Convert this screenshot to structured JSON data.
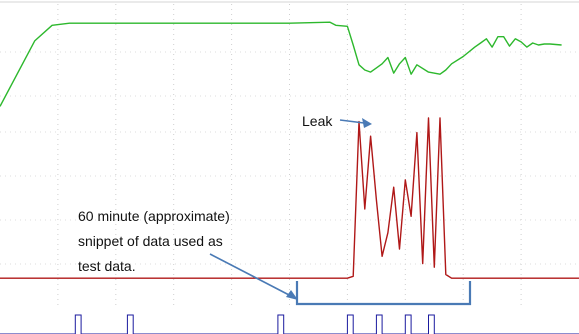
{
  "chart_data": {
    "type": "line",
    "title": "",
    "xlabel": "",
    "ylabel": "",
    "grid": true,
    "legend": "none",
    "series": [
      {
        "key": "green",
        "color": "#2db82d",
        "points": [
          [
            0,
            0.15
          ],
          [
            6,
            0.78
          ],
          [
            9,
            0.93
          ],
          [
            12,
            0.95
          ],
          [
            20,
            0.95
          ],
          [
            30,
            0.95
          ],
          [
            40,
            0.95
          ],
          [
            50,
            0.95
          ],
          [
            57,
            0.96
          ],
          [
            58,
            0.93
          ],
          [
            60,
            0.92
          ],
          [
            61,
            0.74
          ],
          [
            62,
            0.55
          ],
          [
            63,
            0.5
          ],
          [
            64,
            0.48
          ],
          [
            65,
            0.52
          ],
          [
            66,
            0.56
          ],
          [
            67,
            0.62
          ],
          [
            68,
            0.47
          ],
          [
            69,
            0.56
          ],
          [
            70,
            0.62
          ],
          [
            71,
            0.46
          ],
          [
            72,
            0.55
          ],
          [
            74,
            0.48
          ],
          [
            76,
            0.46
          ],
          [
            77,
            0.5
          ],
          [
            78,
            0.56
          ],
          [
            80,
            0.63
          ],
          [
            82,
            0.72
          ],
          [
            83,
            0.76
          ],
          [
            84,
            0.8
          ],
          [
            85,
            0.72
          ],
          [
            86,
            0.82
          ],
          [
            87,
            0.82
          ],
          [
            88,
            0.73
          ],
          [
            89,
            0.8
          ],
          [
            90,
            0.77
          ],
          [
            91,
            0.72
          ],
          [
            92,
            0.76
          ],
          [
            93,
            0.74
          ],
          [
            94,
            0.75
          ],
          [
            95,
            0.75
          ],
          [
            97,
            0.74
          ]
        ]
      },
      {
        "key": "red",
        "color": "#b01818",
        "points": [
          [
            0,
            0.12
          ],
          [
            48,
            0.12
          ],
          [
            60,
            0.12
          ],
          [
            61,
            0.13
          ],
          [
            62,
            0.98
          ],
          [
            63,
            0.5
          ],
          [
            64,
            0.9
          ],
          [
            65,
            0.55
          ],
          [
            66,
            0.24
          ],
          [
            67,
            0.37
          ],
          [
            68,
            0.62
          ],
          [
            69,
            0.28
          ],
          [
            70,
            0.66
          ],
          [
            71,
            0.46
          ],
          [
            72,
            0.92
          ],
          [
            73,
            0.2
          ],
          [
            74,
            1.0
          ],
          [
            75,
            0.18
          ],
          [
            76,
            1.0
          ],
          [
            77,
            0.14
          ],
          [
            78,
            0.12
          ],
          [
            100,
            0.12
          ]
        ]
      },
      {
        "key": "blue",
        "color": "#1a1a9e",
        "points": [
          [
            0,
            0
          ],
          [
            13,
            1
          ],
          [
            14,
            0
          ],
          [
            22,
            1
          ],
          [
            23,
            0
          ],
          [
            48,
            1
          ],
          [
            49,
            0
          ],
          [
            60,
            1
          ],
          [
            61,
            0
          ],
          [
            65,
            1
          ],
          [
            66,
            0
          ],
          [
            70,
            1
          ],
          [
            71,
            0
          ],
          [
            74,
            1
          ],
          [
            75,
            0
          ],
          [
            100,
            0
          ]
        ]
      }
    ],
    "annotations": {
      "leak_label": "Leak",
      "snippet_lines": [
        "60 minute (approximate)",
        "snippet of data used as",
        "test data."
      ]
    }
  }
}
